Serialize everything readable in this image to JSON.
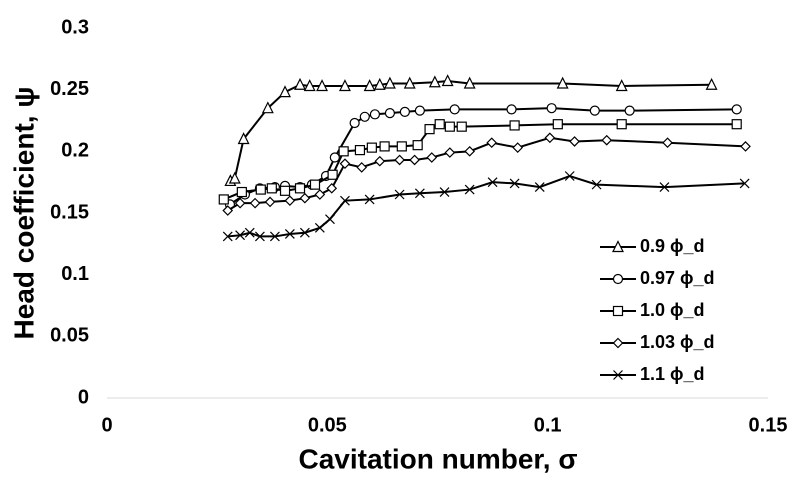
{
  "chart_data": {
    "type": "line",
    "x_label": "Cavitation number, σ",
    "y_label": "Head coefficient, ψ",
    "xlim": [
      0,
      0.15
    ],
    "xticks": [
      0,
      0.05,
      0.1,
      0.15
    ],
    "ylim": [
      0,
      0.3
    ],
    "yticks": [
      0,
      0.05,
      0.1,
      0.15,
      0.2,
      0.25,
      0.3
    ],
    "grid": false,
    "legend": "lower right",
    "series": [
      {
        "name": "0.9 ϕ_d",
        "color": "#000000",
        "marker": "triangle",
        "x": [
          0.028,
          0.029,
          0.031,
          0.0365,
          0.0404,
          0.0438,
          0.046,
          0.0488,
          0.054,
          0.0596,
          0.0619,
          0.0642,
          0.0687,
          0.0744,
          0.0773,
          0.0823,
          0.1034,
          0.1168,
          0.1372
        ],
        "values": [
          0.176,
          0.178,
          0.21,
          0.235,
          0.248,
          0.254,
          0.253,
          0.253,
          0.253,
          0.253,
          0.254,
          0.255,
          0.255,
          0.256,
          0.257,
          0.255,
          0.255,
          0.253,
          0.254
        ]
      },
      {
        "name": "0.97 ϕ_d",
        "color": "#000000",
        "marker": "circle",
        "x": [
          0.0279,
          0.0313,
          0.0347,
          0.0381,
          0.0404,
          0.0438,
          0.0465,
          0.0497,
          0.0517,
          0.0562,
          0.0585,
          0.0608,
          0.0642,
          0.0676,
          0.071,
          0.0789,
          0.0918,
          0.1009,
          0.1107,
          0.1186,
          0.1429
        ],
        "values": [
          0.157,
          0.165,
          0.17,
          0.171,
          0.172,
          0.171,
          0.173,
          0.18,
          0.195,
          0.223,
          0.228,
          0.23,
          0.231,
          0.232,
          0.233,
          0.234,
          0.234,
          0.235,
          0.233,
          0.233,
          0.234
        ]
      },
      {
        "name": "1.0 ϕ_d",
        "color": "#000000",
        "marker": "square",
        "x": [
          0.0265,
          0.0306,
          0.0349,
          0.0374,
          0.0404,
          0.0438,
          0.0472,
          0.0512,
          0.0537,
          0.0574,
          0.0601,
          0.063,
          0.0669,
          0.0705,
          0.0732,
          0.0755,
          0.0778,
          0.0805,
          0.0925,
          0.1023,
          0.1168,
          0.1429
        ],
        "values": [
          0.161,
          0.167,
          0.169,
          0.17,
          0.168,
          0.17,
          0.173,
          0.181,
          0.2,
          0.201,
          0.203,
          0.204,
          0.204,
          0.205,
          0.218,
          0.222,
          0.22,
          0.22,
          0.221,
          0.222,
          0.222,
          0.222
        ]
      },
      {
        "name": "1.03 ϕ_d",
        "color": "#000000",
        "marker": "diamond",
        "x": [
          0.0274,
          0.0302,
          0.0336,
          0.037,
          0.0415,
          0.0449,
          0.0483,
          0.051,
          0.054,
          0.0578,
          0.0619,
          0.0664,
          0.0698,
          0.0737,
          0.0778,
          0.0823,
          0.0873,
          0.0932,
          0.1005,
          0.1061,
          0.1134,
          0.1272,
          0.1449
        ],
        "values": [
          0.152,
          0.158,
          0.158,
          0.159,
          0.16,
          0.162,
          0.165,
          0.17,
          0.19,
          0.187,
          0.192,
          0.193,
          0.193,
          0.195,
          0.199,
          0.2,
          0.207,
          0.203,
          0.211,
          0.208,
          0.209,
          0.207,
          0.204
        ]
      },
      {
        "name": "1.1 ϕ_d",
        "color": "#000000",
        "marker": "cross",
        "x": [
          0.0274,
          0.0302,
          0.0324,
          0.0347,
          0.0381,
          0.0415,
          0.0449,
          0.0483,
          0.0506,
          0.054,
          0.0596,
          0.0664,
          0.071,
          0.0766,
          0.0823,
          0.0875,
          0.0925,
          0.0982,
          0.105,
          0.1111,
          0.1265,
          0.1447
        ],
        "values": [
          0.131,
          0.132,
          0.134,
          0.131,
          0.131,
          0.133,
          0.134,
          0.138,
          0.145,
          0.16,
          0.161,
          0.165,
          0.166,
          0.167,
          0.169,
          0.175,
          0.174,
          0.171,
          0.18,
          0.173,
          0.171,
          0.174
        ]
      }
    ]
  }
}
